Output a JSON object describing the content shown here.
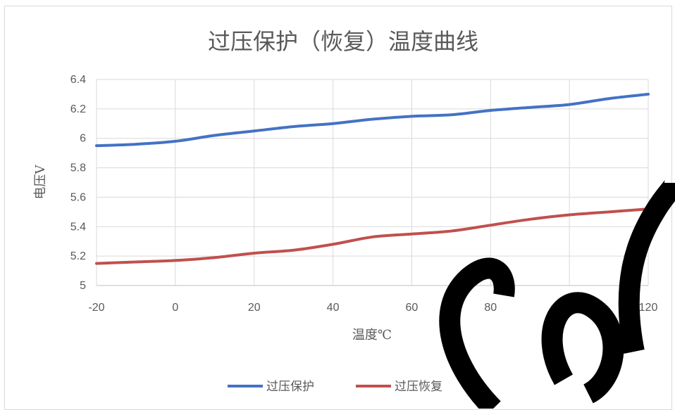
{
  "chart_data": {
    "type": "line",
    "title": "过压保护（恢复）温度曲线",
    "xlabel": "温度℃",
    "ylabel": "电压V",
    "x": [
      -20,
      -10,
      0,
      10,
      20,
      30,
      40,
      50,
      60,
      70,
      80,
      90,
      100,
      110,
      120
    ],
    "xlim": [
      -20,
      120
    ],
    "xticks": [
      -20,
      0,
      20,
      40,
      60,
      80,
      100,
      120
    ],
    "ylim": [
      5,
      6.4
    ],
    "yticks": [
      5,
      5.2,
      5.4,
      5.6,
      5.8,
      6,
      6.2,
      6.4
    ],
    "grid": true,
    "legend_position": "bottom",
    "series": [
      {
        "name": "过压保护",
        "color": "#4472c4",
        "values": [
          5.95,
          5.96,
          5.98,
          6.02,
          6.05,
          6.08,
          6.1,
          6.13,
          6.15,
          6.16,
          6.19,
          6.21,
          6.23,
          6.27,
          6.3
        ]
      },
      {
        "name": "过压恢复",
        "color": "#c0504d",
        "values": [
          5.15,
          5.16,
          5.17,
          5.19,
          5.22,
          5.24,
          5.28,
          5.33,
          5.35,
          5.37,
          5.41,
          5.45,
          5.48,
          5.5,
          5.52
        ]
      }
    ]
  }
}
